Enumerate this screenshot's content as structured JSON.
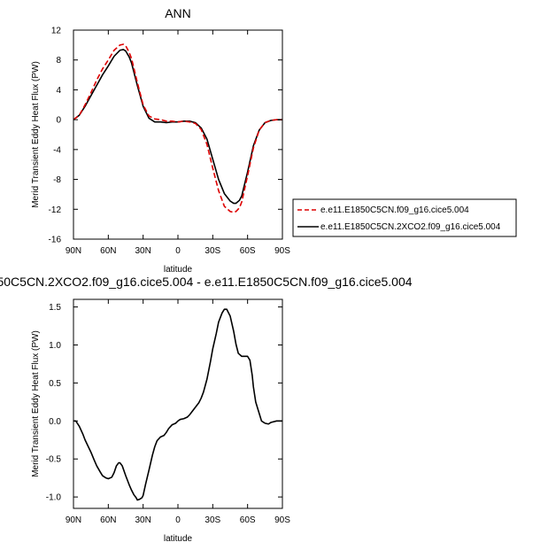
{
  "chart_data": [
    {
      "type": "line",
      "title": "ANN",
      "xlabel": "latitude",
      "ylabel": "Merid Transient Eddy Heat Flux (PW)",
      "xlim": [
        90,
        -90
      ],
      "ylim": [
        -16,
        12
      ],
      "xticks": [
        90,
        60,
        30,
        0,
        -30,
        -60,
        -90
      ],
      "xtick_labels": [
        "90N",
        "60N",
        "30N",
        "0",
        "30S",
        "60S",
        "90S"
      ],
      "yticks": [
        -16,
        -12,
        -8,
        -4,
        0,
        4,
        8,
        12
      ],
      "ytick_labels": [
        "-16",
        "-12",
        "-8",
        "-4",
        "0",
        "4",
        "8",
        "12"
      ],
      "legend": "right",
      "series": [
        {
          "name": "e.e11.E1850C5CN.f09_g16.cice5.004",
          "color": "#dd0000",
          "dash": "dashed",
          "x": [
            90,
            85,
            80,
            75,
            70,
            65,
            60,
            55,
            50,
            47,
            45,
            42,
            40,
            35,
            30,
            25,
            20,
            15,
            10,
            5,
            0,
            -5,
            -10,
            -15,
            -20,
            -25,
            -30,
            -35,
            -40,
            -45,
            -48,
            -50,
            -53,
            -55,
            -60,
            -65,
            -70,
            -75,
            -80,
            -85,
            -90
          ],
          "y": [
            0,
            0.6,
            2.0,
            3.6,
            5.3,
            6.8,
            8.0,
            9.3,
            10.0,
            10.1,
            9.9,
            9.0,
            8.2,
            5.0,
            2.0,
            0.5,
            0.1,
            0.0,
            -0.2,
            -0.2,
            -0.3,
            -0.2,
            -0.3,
            -0.5,
            -1.3,
            -3.3,
            -6.5,
            -9.5,
            -11.6,
            -12.3,
            -12.4,
            -12.3,
            -11.8,
            -11.0,
            -7.5,
            -3.8,
            -1.4,
            -0.4,
            -0.1,
            0,
            0
          ]
        },
        {
          "name": "e.e11.E1850C5CN.2XCO2.f09_g16.cice5.004",
          "color": "#000000",
          "dash": "solid",
          "x": [
            90,
            85,
            80,
            75,
            70,
            65,
            60,
            55,
            50,
            47,
            45,
            42,
            40,
            35,
            30,
            25,
            20,
            15,
            10,
            5,
            0,
            -5,
            -10,
            -15,
            -20,
            -25,
            -30,
            -35,
            -40,
            -45,
            -48,
            -50,
            -53,
            -55,
            -60,
            -65,
            -70,
            -75,
            -80,
            -85,
            -90
          ],
          "y": [
            0,
            0.6,
            1.8,
            3.2,
            4.6,
            6.0,
            7.2,
            8.5,
            9.3,
            9.4,
            9.2,
            8.4,
            7.6,
            4.6,
            1.8,
            0.2,
            -0.3,
            -0.3,
            -0.4,
            -0.3,
            -0.3,
            -0.2,
            -0.2,
            -0.4,
            -1.1,
            -2.6,
            -5.3,
            -8.0,
            -9.9,
            -10.9,
            -11.2,
            -11.2,
            -10.8,
            -10.2,
            -7.0,
            -3.5,
            -1.4,
            -0.4,
            -0.1,
            0,
            0
          ]
        }
      ]
    },
    {
      "type": "line",
      "title": "50C5CN.2XCO2.f09_g16.cice5.004 - e.e11.E1850C5CN.f09_g16.cice5.004",
      "xlabel": "latitude",
      "ylabel": "Merid Transient Eddy Heat Flux (PW)",
      "xlim": [
        90,
        -90
      ],
      "ylim": [
        -1.15,
        1.6
      ],
      "xticks": [
        90,
        60,
        30,
        0,
        -30,
        -60,
        -90
      ],
      "xtick_labels": [
        "90N",
        "60N",
        "30N",
        "0",
        "30S",
        "60S",
        "90S"
      ],
      "yticks": [
        -1.0,
        -0.5,
        0.0,
        0.5,
        1.0,
        1.5
      ],
      "ytick_labels": [
        "-1.0",
        "-0.5",
        "0.0",
        "0.5",
        "1.0",
        "1.5"
      ],
      "series": [
        {
          "color": "#000000",
          "dash": "solid",
          "x": [
            90,
            88,
            85,
            82,
            80,
            75,
            72,
            70,
            67,
            65,
            62,
            60,
            57,
            55,
            53,
            51,
            50,
            48,
            45,
            42,
            40,
            38,
            36,
            35,
            33,
            31,
            30,
            28,
            25,
            22,
            20,
            18,
            15,
            12,
            10,
            8,
            5,
            2,
            0,
            -2,
            -5,
            -8,
            -10,
            -12,
            -15,
            -18,
            -20,
            -22,
            -25,
            -28,
            -30,
            -33,
            -35,
            -38,
            -40,
            -42,
            -45,
            -48,
            -50,
            -52,
            -55,
            -57,
            -60,
            -62,
            -64,
            -65,
            -67,
            -70,
            -72,
            -75,
            -78,
            -80,
            -85,
            -88,
            -90
          ],
          "y": [
            0,
            0,
            -0.07,
            -0.17,
            -0.25,
            -0.41,
            -0.52,
            -0.59,
            -0.67,
            -0.72,
            -0.75,
            -0.76,
            -0.74,
            -0.68,
            -0.59,
            -0.55,
            -0.55,
            -0.59,
            -0.72,
            -0.84,
            -0.91,
            -0.97,
            -1.01,
            -1.04,
            -1.03,
            -1.01,
            -0.98,
            -0.84,
            -0.65,
            -0.45,
            -0.34,
            -0.26,
            -0.21,
            -0.19,
            -0.15,
            -0.1,
            -0.05,
            -0.03,
            0.0,
            0.02,
            0.03,
            0.05,
            0.08,
            0.12,
            0.18,
            0.24,
            0.3,
            0.38,
            0.55,
            0.78,
            0.95,
            1.15,
            1.3,
            1.42,
            1.47,
            1.47,
            1.38,
            1.18,
            1.01,
            0.89,
            0.85,
            0.85,
            0.85,
            0.8,
            0.6,
            0.45,
            0.25,
            0.1,
            0.0,
            -0.03,
            -0.04,
            -0.02,
            0.0,
            0.0,
            0.0
          ]
        }
      ]
    }
  ]
}
